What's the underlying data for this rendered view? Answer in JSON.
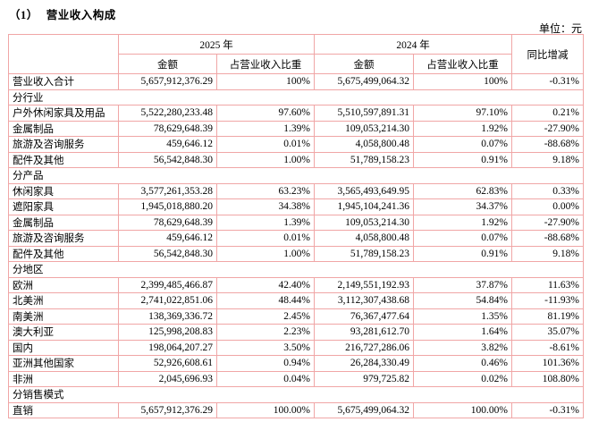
{
  "page": {
    "title_prefix": "（1）",
    "title_text": "营业收入构成",
    "unit_label": "单位：元"
  },
  "table": {
    "header": {
      "year_2025": "2025 年",
      "year_2024": "2024 年",
      "yoy": "同比增减",
      "amount": "金额",
      "share": "占营业收入比重"
    },
    "rows": [
      {
        "type": "data",
        "label": "营业收入合计",
        "a2025": "5,657,912,376.29",
        "p2025": "100%",
        "a2024": "5,675,499,064.32",
        "p2024": "100%",
        "yoy": "-0.31%"
      },
      {
        "type": "section",
        "label": "分行业"
      },
      {
        "type": "data",
        "label": "户外休闲家具及用品",
        "a2025": "5,522,280,233.48",
        "p2025": "97.60%",
        "a2024": "5,510,597,891.31",
        "p2024": "97.10%",
        "yoy": "0.21%"
      },
      {
        "type": "data",
        "label": "金属制品",
        "a2025": "78,629,648.39",
        "p2025": "1.39%",
        "a2024": "109,053,214.30",
        "p2024": "1.92%",
        "yoy": "-27.90%"
      },
      {
        "type": "data",
        "label": "旅游及咨询服务",
        "a2025": "459,646.12",
        "p2025": "0.01%",
        "a2024": "4,058,800.48",
        "p2024": "0.07%",
        "yoy": "-88.68%"
      },
      {
        "type": "data",
        "label": "配件及其他",
        "a2025": "56,542,848.30",
        "p2025": "1.00%",
        "a2024": "51,789,158.23",
        "p2024": "0.91%",
        "yoy": "9.18%"
      },
      {
        "type": "section",
        "label": "分产品"
      },
      {
        "type": "data",
        "label": "休闲家具",
        "a2025": "3,577,261,353.28",
        "p2025": "63.23%",
        "a2024": "3,565,493,649.95",
        "p2024": "62.83%",
        "yoy": "0.33%"
      },
      {
        "type": "data",
        "label": "遮阳家具",
        "a2025": "1,945,018,880.20",
        "p2025": "34.38%",
        "a2024": "1,945,104,241.36",
        "p2024": "34.37%",
        "yoy": "0.00%"
      },
      {
        "type": "data",
        "label": "金属制品",
        "a2025": "78,629,648.39",
        "p2025": "1.39%",
        "a2024": "109,053,214.30",
        "p2024": "1.92%",
        "yoy": "-27.90%"
      },
      {
        "type": "data",
        "label": "旅游及咨询服务",
        "a2025": "459,646.12",
        "p2025": "0.01%",
        "a2024": "4,058,800.48",
        "p2024": "0.07%",
        "yoy": "-88.68%"
      },
      {
        "type": "data",
        "label": "配件及其他",
        "a2025": "56,542,848.30",
        "p2025": "1.00%",
        "a2024": "51,789,158.23",
        "p2024": "0.91%",
        "yoy": "9.18%"
      },
      {
        "type": "section",
        "label": "分地区"
      },
      {
        "type": "data",
        "label": "欧洲",
        "a2025": "2,399,485,466.87",
        "p2025": "42.40%",
        "a2024": "2,149,551,192.93",
        "p2024": "37.87%",
        "yoy": "11.63%"
      },
      {
        "type": "data",
        "label": "北美洲",
        "a2025": "2,741,022,851.06",
        "p2025": "48.44%",
        "a2024": "3,112,307,438.68",
        "p2024": "54.84%",
        "yoy": "-11.93%"
      },
      {
        "type": "data",
        "label": "南美洲",
        "a2025": "138,369,336.72",
        "p2025": "2.45%",
        "a2024": "76,367,477.64",
        "p2024": "1.35%",
        "yoy": "81.19%"
      },
      {
        "type": "data",
        "label": "澳大利亚",
        "a2025": "125,998,208.83",
        "p2025": "2.23%",
        "a2024": "93,281,612.70",
        "p2024": "1.64%",
        "yoy": "35.07%"
      },
      {
        "type": "data",
        "label": "国内",
        "a2025": "198,064,207.27",
        "p2025": "3.50%",
        "a2024": "216,727,286.06",
        "p2024": "3.82%",
        "yoy": "-8.61%"
      },
      {
        "type": "data",
        "label": "亚洲其他国家",
        "a2025": "52,926,608.61",
        "p2025": "0.94%",
        "a2024": "26,284,330.49",
        "p2024": "0.46%",
        "yoy": "101.36%"
      },
      {
        "type": "data",
        "label": "非洲",
        "a2025": "2,045,696.93",
        "p2025": "0.04%",
        "a2024": "979,725.82",
        "p2024": "0.02%",
        "yoy": "108.80%"
      },
      {
        "type": "section",
        "label": "分销售模式"
      },
      {
        "type": "data",
        "label": "直销",
        "a2025": "5,657,912,376.29",
        "p2025": "100.00%",
        "a2024": "5,675,499,064.32",
        "p2024": "100.00%",
        "yoy": "-0.31%"
      }
    ],
    "border_color": "#f0a6a6"
  }
}
